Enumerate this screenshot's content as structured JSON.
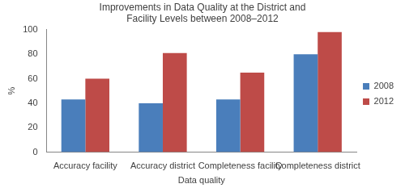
{
  "chart_data": {
    "type": "bar",
    "title": [
      "Improvements in Data Quality at the District and",
      "Facility Levels between 2008–2012"
    ],
    "x_label": "Data quality",
    "y_label": "%",
    "categories": [
      "Accuracy facility",
      "Accuracy district",
      "Completeness facility",
      "Completeness district"
    ],
    "series": [
      {
        "name": "2008",
        "color": "#4a7ebb",
        "values": [
          43,
          40,
          43,
          80
        ]
      },
      {
        "name": "2012",
        "color": "#be4b48",
        "values": [
          60,
          81,
          65,
          98
        ]
      }
    ],
    "ylim": [
      0,
      100
    ],
    "yticks": [
      0,
      20,
      40,
      60,
      80,
      100
    ],
    "grid": false,
    "legend": "right"
  }
}
